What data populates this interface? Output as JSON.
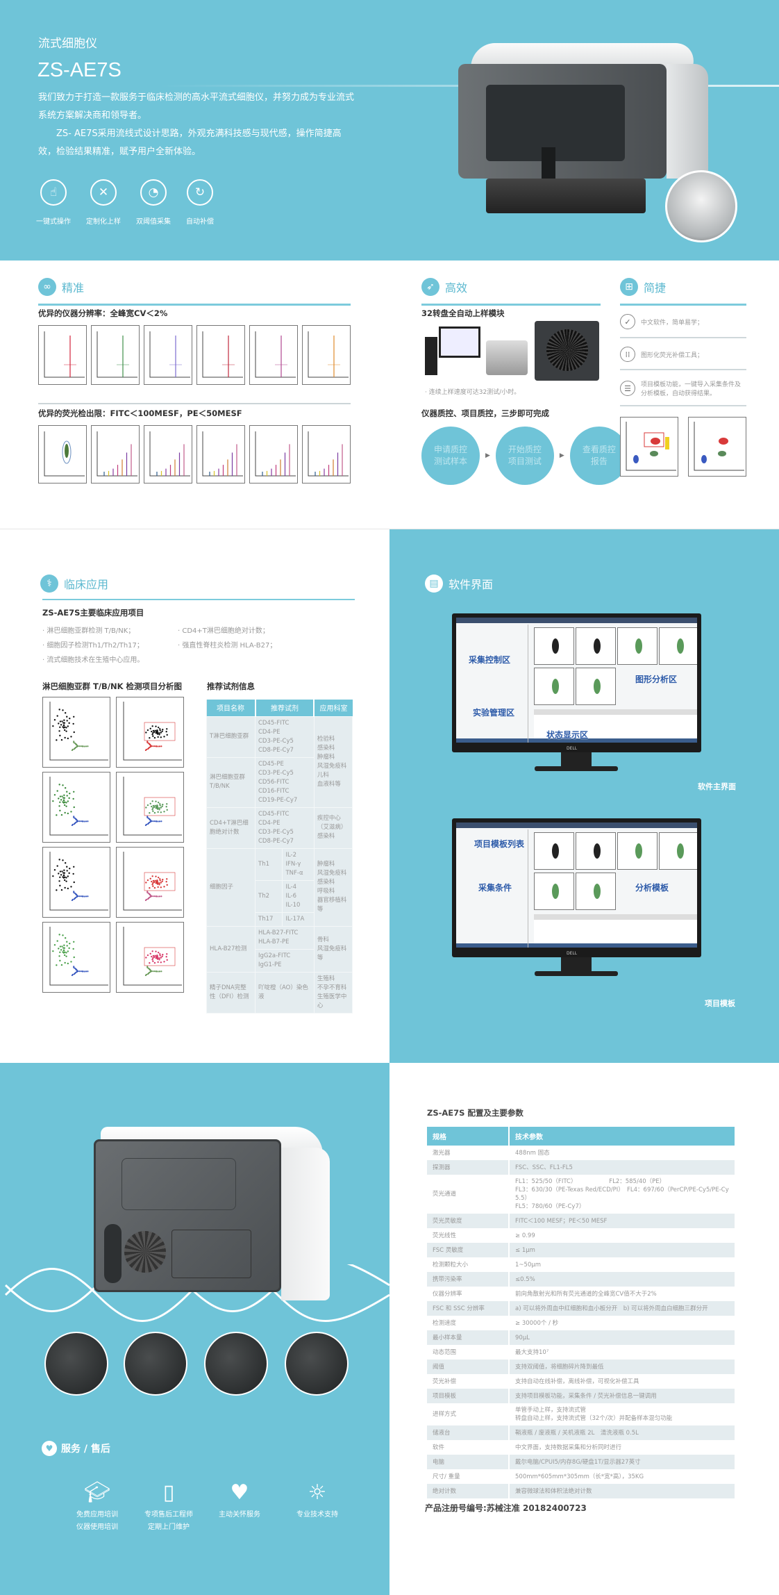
{
  "hero": {
    "subtitle": "流式细胞仪",
    "title": "ZS-AE7S",
    "para1": "我们致力于打造一款服务于临床检测的高水平流式细胞仪，并努力成为专业流式系统方案解决商和领导者。",
    "para2": "ZS- AE7S采用流线式设计思路，外观充满科技感与现代感，操作简捷高效，检验结果精准，赋予用户全新体验。",
    "features": [
      {
        "label": "一键式操作",
        "icon": "touch-icon"
      },
      {
        "label": "定制化上样",
        "icon": "tools-icon"
      },
      {
        "label": "双阈值采集",
        "icon": "gauge-icon"
      },
      {
        "label": "自动补偿",
        "icon": "sync-icon"
      }
    ]
  },
  "precision": {
    "heading": "精准",
    "resolution_title": "优异的仪器分辨率：全峰宽CV＜2%",
    "fluorescence_title": "优异的荧光检出限：FITC＜100MESF，PE＜50MESF"
  },
  "efficiency": {
    "heading": "高效",
    "autoloader_title": "32转盘全自动上样模块",
    "autoloader_note": "· 连续上样速度可达32测试/小时。",
    "qc_title": "仪器质控、项目质控，三步即可完成",
    "qc_steps": [
      "申请质控测试样本",
      "开始质控项目测试",
      "查看质控报告"
    ]
  },
  "simplicity": {
    "heading": "简捷",
    "items": [
      "中文软件，简单易学；",
      "图形化荧光补偿工具；",
      "项目模板功能，一键导入采集条件及分析模板，自动获得结果。"
    ]
  },
  "clinical": {
    "heading": "临床应用",
    "title": "ZS-AE7S主要临床应用项目",
    "bullets": [
      "· 淋巴细胞亚群检测 T/B/NK；",
      "· CD4+T淋巴细胞绝对计数；",
      "· 细胞因子检测Th1/Th2/Th17；",
      "· 强直性脊柱炎检测 HLA-B27；",
      "· 流式细胞技术在生殖中心应用。"
    ],
    "chart_title": "淋巴细胞亚群 T/B/NK 检测项目分析图",
    "reagent_title": "推荐试剂信息",
    "reagent_headers": [
      "项目名称",
      "推荐试剂",
      "应用科室"
    ],
    "reagents": {
      "t_name": "T淋巴细胞亚群",
      "t_reagents": "CD45-FITC\nCD4-PE\nCD3-PE-Cy5\nCD8-PE-Cy7",
      "tbnk_name": "淋巴细胞亚群T/B/NK",
      "tbnk_reagents": "CD45-PE\nCD3-PE-Cy5\nCD56-FITC\nCD16-FITC\nCD19-PE-Cy7",
      "t_dept": "检验科\n感染科\n肿瘤科\n风湿免疫科\n儿科\n血液科等",
      "cd4_name": "CD4+T淋巴细胞绝对计数",
      "cd4_reagents": "CD45-FITC\nCD4-PE\nCD3-PE-Cy5\nCD8-PE-Cy7",
      "cd4_dept": "疾控中心\n（艾滋病）\n感染科",
      "cyto_name": "细胞因子",
      "th1": "Th1",
      "th1_r": "IL-2\nIFN-γ\nTNF-α",
      "th2": "Th2",
      "th2_r": "IL-4\nIL-6\nIL-10",
      "th17": "Th17",
      "th17_r": "IL-17A",
      "cyto_dept": "肿瘤科\n风湿免疫科\n感染科\n呼吸科\n器官移植科等",
      "hla_name": "HLA-B27检测",
      "hla_r1": "HLA-B27-FITC\nHLA-B7-PE",
      "hla_r2": "IgG2a-FITC\nIgG1-PE",
      "hla_dept": "骨科\n风湿免疫科等",
      "dfi_name": "精子DNA完整性（DFI）检测",
      "dfi_r": "吖啶橙（AO）染色液",
      "dfi_dept": "生殖科\n不孕不育科\n生殖医学中心"
    }
  },
  "software": {
    "heading": "软件界面",
    "main_zones": [
      "采集控制区",
      "实验管理区",
      "图形分析区",
      "状态显示区"
    ],
    "main_label": "软件主界面",
    "template_zones": [
      "项目模板列表",
      "采集条件",
      "分析模板"
    ],
    "template_label": "项目模板",
    "monitor_brand": "DELL"
  },
  "service": {
    "heading": "服务 / 售后",
    "items": [
      {
        "icon": "graduation-cap-icon",
        "line1": "免费应用培训",
        "line2": "仪器使用培训"
      },
      {
        "icon": "door-icon",
        "line1": "专项售后工程师",
        "line2": "定期上门维护"
      },
      {
        "icon": "caring-hands-icon",
        "line1": "主动关怀服务",
        "line2": ""
      },
      {
        "icon": "lightbulb-icon",
        "line1": "专业技术支持",
        "line2": ""
      }
    ]
  },
  "specs": {
    "title": "ZS-AE7S 配置及主要参数",
    "headers": [
      "规格",
      "技术参数"
    ],
    "rows": [
      [
        "激光器",
        "488nm 固态"
      ],
      [
        "探测器",
        "FSC、SSC、FL1-FL5"
      ],
      [
        "荧光通道",
        "FL1：525/50（FITC）　　　　　　FL2：585/40（PE）\nFL3：630/30（PE-Texas Red/ECD/PI）　FL4：697/60（PerCP/PE-Cy5/PE-Cy5.5）\nFL5：780/60（PE-Cy7）"
      ],
      [
        "荧光灵敏度",
        "FITC＜100 MESF；PE＜50 MESF"
      ],
      [
        "荧光线性",
        "≥ 0.99"
      ],
      [
        "FSC 灵敏度",
        "≤ 1μm"
      ],
      [
        "检测颗粒大小",
        "1~50μm"
      ],
      [
        "携带污染率",
        "≤0.5%"
      ],
      [
        "仪器分辨率",
        "前向角散射光和所有荧光通道的全峰宽CV值不大于2%"
      ],
      [
        "FSC 和 SSC 分辨率",
        "a) 可以将外周血中红细胞和血小板分开　b) 可以将外周血白细胞三群分开"
      ],
      [
        "检测速度",
        "≥ 30000个 / 秒"
      ],
      [
        "最小样本量",
        "90μL"
      ],
      [
        "动态范围",
        "最大支持10⁷"
      ],
      [
        "阈值",
        "支持双阈值，将细胞碎片降到最低"
      ],
      [
        "荧光补偿",
        "支持自动在线补偿，离线补偿，可视化补偿工具"
      ],
      [
        "项目模板",
        "支持项目模板功能，采集条件 / 荧光补偿信息一键调用"
      ],
      [
        "进样方式",
        "单管手动上样，支持流式管\n转盘自动上样，支持流式管（32个/次）并配备样本混匀功能"
      ],
      [
        "储液台",
        "鞘液瓶 / 废液瓶 / 关机液瓶 2L　清洗液瓶 0.5L"
      ],
      [
        "软件",
        "中文界面，支持数据采集和分析同时进行"
      ],
      [
        "电脑",
        "戴尔电脑/CPUI5/内存8G/硬盘1T/显示器27英寸"
      ],
      [
        "尺寸/ 重量",
        "500mm*605mm*305mm（长*宽*高），35KG"
      ],
      [
        "绝对计数",
        "兼容微球法和体积法绝对计数"
      ]
    ],
    "registration": "产品注册号编号:苏械注准 20182400723"
  },
  "colors": {
    "brand_cyan": "#6fc4d8",
    "table_alt": "#e4ecef"
  }
}
